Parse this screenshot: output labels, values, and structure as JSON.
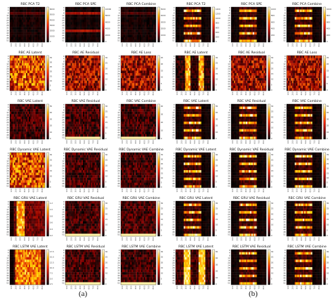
{
  "figure": {
    "caption_a": "(a)",
    "caption_b": "(b)",
    "colors": {
      "background": "#ffffff",
      "cmap": [
        "#000000",
        "#3a0000",
        "#8b0000",
        "#d42a00",
        "#ff7a00",
        "#ffd800",
        "#ffffee"
      ]
    }
  },
  "chart_data": [
    {
      "panel": "a",
      "type": "heatmap",
      "colormap": "hot",
      "x_tick_labels": [
        "100",
        "200",
        "300",
        "400",
        "500",
        "600",
        "700",
        "800"
      ],
      "y_tick_labels": [
        "0",
        "4",
        "8",
        "12",
        "16",
        "20",
        "24",
        "28",
        "32",
        "36",
        "40",
        "44",
        "48",
        "52"
      ],
      "subplots": [
        {
          "title": "RBC PCA T2",
          "colorbar_ticks": [
            "0",
            "1000",
            "2000",
            "3000",
            "4000",
            "5000",
            "6000"
          ],
          "pattern": "dark"
        },
        {
          "title": "RBC PCA SPE",
          "colorbar_ticks": [
            "0",
            "2000",
            "4000",
            "6000",
            "8000",
            "10000"
          ],
          "pattern": "dark-lines"
        },
        {
          "title": "RBC PCA Combine",
          "colorbar_ticks": [
            "0",
            "1000",
            "2000",
            "3000",
            "4000",
            "5000"
          ],
          "pattern": "dark"
        },
        {
          "title": "RBC AE Latent",
          "colorbar_ticks": [
            "0",
            "5",
            "10",
            "15",
            "20",
            "25",
            "30",
            "35"
          ],
          "pattern": "noise-high"
        },
        {
          "title": "RBC AE Residual",
          "colorbar_ticks": [
            "0",
            "5",
            "10",
            "15",
            "20",
            "25",
            "30"
          ],
          "pattern": "noise-mid"
        },
        {
          "title": "RBC AE Loss",
          "colorbar_ticks": [
            "0",
            "5",
            "10",
            "15",
            "20",
            "25"
          ],
          "pattern": "noise-mid"
        },
        {
          "title": "RBC VAE Latent",
          "colorbar_ticks": [
            "0",
            "10",
            "20",
            "30",
            "40",
            "50"
          ],
          "pattern": "noise-low"
        },
        {
          "title": "RBC VAE Residual",
          "colorbar_ticks": [
            "0",
            "5",
            "10",
            "15",
            "20",
            "25",
            "30"
          ],
          "pattern": "noise-bottom"
        },
        {
          "title": "RBC VAE Combine",
          "colorbar_ticks": [
            "0",
            "10",
            "20",
            "30",
            "40"
          ],
          "pattern": "noise-bottom"
        },
        {
          "title": "RBC Dynamic VAE Latent",
          "colorbar_ticks": [
            "0",
            "5",
            "10",
            "15",
            "20",
            "25",
            "30"
          ],
          "pattern": "noise-high"
        },
        {
          "title": "RBC Dynamic VAE Residual",
          "colorbar_ticks": [
            "0",
            "5",
            "10",
            "15",
            "20",
            "25",
            "30"
          ],
          "pattern": "noise-low"
        },
        {
          "title": "RBC Dynamic VAE Combine",
          "colorbar_ticks": [
            "0",
            "5",
            "10",
            "15",
            "20",
            "25",
            "30",
            "35"
          ],
          "pattern": "noise-low"
        },
        {
          "title": "RBC GRU VAE Latent",
          "colorbar_ticks": [
            "0.2",
            "0.4",
            "0.6",
            "0.8",
            "1.0",
            "1.2"
          ],
          "pattern": "vertical-band"
        },
        {
          "title": "RBC GRU VAE Residual",
          "colorbar_ticks": [
            "0",
            "5",
            "10",
            "15",
            "20",
            "25",
            "30"
          ],
          "pattern": "noise-bottom"
        },
        {
          "title": "RBC GRU VAE Combine",
          "colorbar_ticks": [
            "0",
            "5",
            "10",
            "15",
            "20",
            "25",
            "30"
          ],
          "pattern": "noise-bottom"
        },
        {
          "title": "RBC LSTM VAE Latent",
          "colorbar_ticks": [
            "2.5",
            "5.0",
            "7.5",
            "10.0",
            "12.5",
            "15.0",
            "17.5"
          ],
          "pattern": "wide-band"
        },
        {
          "title": "RBC LSTM VAE Residual",
          "colorbar_ticks": [
            "0",
            "5",
            "10",
            "15",
            "20",
            "25",
            "30"
          ],
          "pattern": "noise-bottom"
        },
        {
          "title": "RBC LSTM VAE Combine",
          "colorbar_ticks": [
            "0",
            "5",
            "10",
            "15",
            "20",
            "25",
            "30"
          ],
          "pattern": "noise-bottom"
        }
      ]
    },
    {
      "panel": "b",
      "type": "heatmap",
      "colormap": "hot",
      "x_tick_labels": [
        "100",
        "200",
        "300",
        "400",
        "500",
        "600",
        "700",
        "800"
      ],
      "y_tick_labels": [
        "0",
        "4",
        "8",
        "12",
        "16",
        "20",
        "24",
        "28",
        "32",
        "36",
        "40",
        "44",
        "48",
        "52"
      ],
      "subplots": [
        {
          "title": "RBC PCA T2",
          "colorbar_ticks": [
            "0",
            "200",
            "400",
            "600",
            "800",
            "1000",
            "1200",
            "1400"
          ],
          "pattern": "stripes"
        },
        {
          "title": "RBC PCA SPE",
          "colorbar_ticks": [
            "0",
            "200",
            "400",
            "600",
            "800",
            "1000"
          ],
          "pattern": "stripes"
        },
        {
          "title": "RBC PCA Combine",
          "colorbar_ticks": [
            "0",
            "200",
            "400",
            "600",
            "800",
            "1000"
          ],
          "pattern": "stripes"
        },
        {
          "title": "RBC AE Latent",
          "colorbar_ticks": [
            "0",
            "5",
            "10",
            "15",
            "20",
            "25",
            "30"
          ],
          "pattern": "two-bands"
        },
        {
          "title": "RBC AE Residual",
          "colorbar_ticks": [
            "0",
            "5",
            "10",
            "15",
            "20",
            "25",
            "30"
          ],
          "pattern": "noise-mid"
        },
        {
          "title": "RBC AE Loss",
          "colorbar_ticks": [
            "0",
            "5",
            "10",
            "15",
            "20",
            "25"
          ],
          "pattern": "noise-mid"
        },
        {
          "title": "RBC VAE Latent",
          "colorbar_ticks": [
            "0",
            "10",
            "20",
            "30",
            "40",
            "50"
          ],
          "pattern": "stripes"
        },
        {
          "title": "RBC VAE Residual",
          "colorbar_ticks": [
            "0",
            "5",
            "10",
            "15",
            "20",
            "25",
            "30"
          ],
          "pattern": "stripes"
        },
        {
          "title": "RBC VAE Combine",
          "colorbar_ticks": [
            "0",
            "10",
            "20",
            "30",
            "40",
            "50"
          ],
          "pattern": "stripes"
        },
        {
          "title": "RBC Dynamic VAE Latent",
          "colorbar_ticks": [
            "0",
            "5",
            "10",
            "15",
            "20",
            "25",
            "30"
          ],
          "pattern": "stripes"
        },
        {
          "title": "RBC Dynamic VAE Residual",
          "colorbar_ticks": [
            "0",
            "5",
            "10",
            "15",
            "20",
            "25",
            "30"
          ],
          "pattern": "stripes"
        },
        {
          "title": "RBC Dynamic VAE Combine",
          "colorbar_ticks": [
            "0",
            "5",
            "10",
            "15",
            "20",
            "25",
            "30",
            "35"
          ],
          "pattern": "stripes"
        },
        {
          "title": "RBC GRU VAE Latent",
          "colorbar_ticks": [
            "0",
            "5",
            "10",
            "15",
            "20",
            "25",
            "30"
          ],
          "pattern": "stripes"
        },
        {
          "title": "RBC GRU VAE Residual",
          "colorbar_ticks": [
            "0",
            "5",
            "10",
            "15",
            "20",
            "25",
            "30"
          ],
          "pattern": "stripes"
        },
        {
          "title": "RBC GRU VAE Combine",
          "colorbar_ticks": [
            "0",
            "5",
            "10",
            "15",
            "20",
            "25",
            "30"
          ],
          "pattern": "stripes"
        },
        {
          "title": "RBC LSTM VAE Latent",
          "colorbar_ticks": [
            "0",
            "10",
            "20",
            "30",
            "40",
            "50"
          ],
          "pattern": "two-bands-strong"
        },
        {
          "title": "RBC LSTM VAE Residual",
          "colorbar_ticks": [
            "0",
            "5",
            "10",
            "15",
            "20",
            "25",
            "30"
          ],
          "pattern": "stripes"
        },
        {
          "title": "RBC LSTM VAE Combine",
          "colorbar_ticks": [
            "0",
            "5",
            "10",
            "15",
            "20",
            "25",
            "30"
          ],
          "pattern": "stripes"
        }
      ]
    }
  ]
}
